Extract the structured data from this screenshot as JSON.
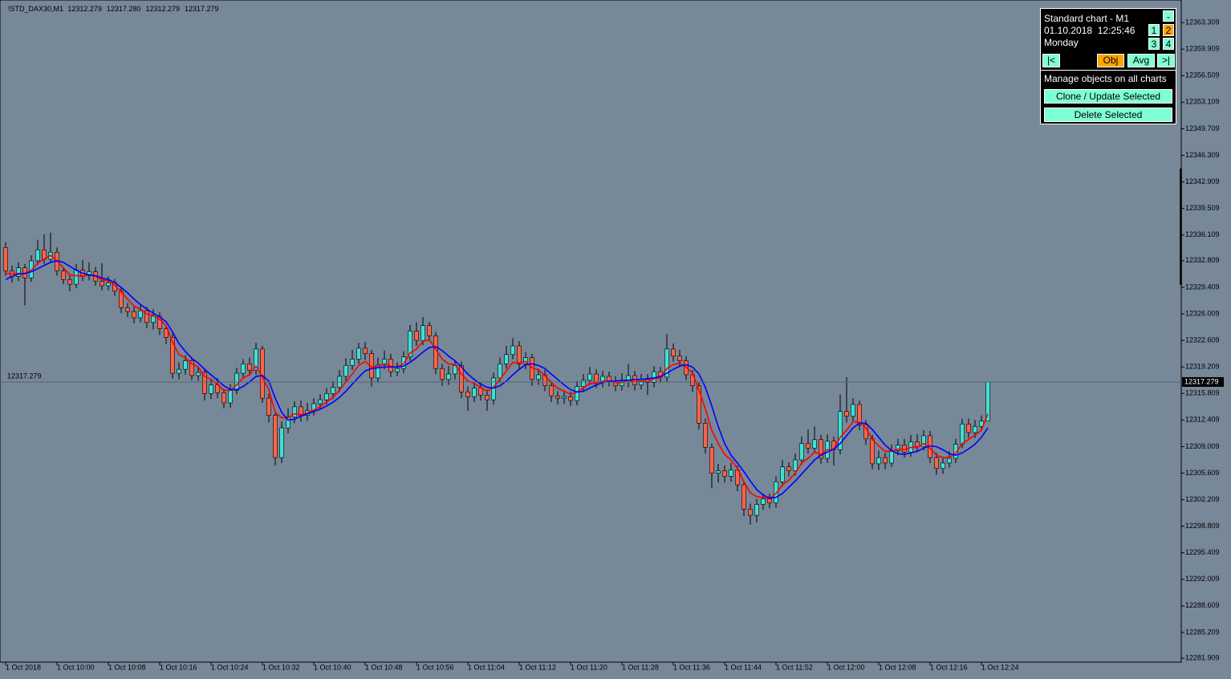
{
  "chart_data": {
    "type": "candlestick",
    "symbol": "!STD_DAX30,M1",
    "header_ohlc": [
      "12312.279",
      "12317.280",
      "12312.279",
      "12317.279"
    ],
    "categories": [
      "1 Oct 2018",
      null,
      null,
      null,
      null,
      null,
      null,
      null,
      "1 Oct 10:00",
      null,
      null,
      null,
      null,
      null,
      null,
      null,
      "1 Oct 10:08",
      null,
      null,
      null,
      null,
      null,
      null,
      null,
      "1 Oct 10:16",
      null,
      null,
      null,
      null,
      null,
      null,
      null,
      "1 Oct 10:24",
      null,
      null,
      null,
      null,
      null,
      null,
      null,
      "1 Oct 10:32",
      null,
      null,
      null,
      null,
      null,
      null,
      null,
      "1 Oct 10:40",
      null,
      null,
      null,
      null,
      null,
      null,
      null,
      "1 Oct 10:48",
      null,
      null,
      null,
      null,
      null,
      null,
      null,
      "1 Oct 10:56",
      null,
      null,
      null,
      null,
      null,
      null,
      null,
      "1 Oct 11:04",
      null,
      null,
      null,
      null,
      null,
      null,
      null,
      "1 Oct 11:12",
      null,
      null,
      null,
      null,
      null,
      null,
      null,
      "1 Oct 11:20",
      null,
      null,
      null,
      null,
      null,
      null,
      null,
      "1 Oct 11:28",
      null,
      null,
      null,
      null,
      null,
      null,
      null,
      "1 Oct 11:36",
      null,
      null,
      null,
      null,
      null,
      null,
      null,
      "1 Oct 11:44",
      null,
      null,
      null,
      null,
      null,
      null,
      null,
      "1 Oct 11:52",
      null,
      null,
      null,
      null,
      null,
      null,
      null,
      "1 Oct 12:00",
      null,
      null,
      null,
      null,
      null,
      null,
      null,
      "1 Oct 12:08",
      null,
      null,
      null,
      null,
      null,
      null,
      null,
      "1 Oct 12:16",
      null,
      null,
      null,
      null,
      null,
      null,
      null,
      "1 Oct 12:24",
      null
    ],
    "open": [
      12334.5,
      12331.5,
      12330.8,
      12331.9,
      12330.6,
      12332.8,
      12334.2,
      12333.0,
      12333.9,
      12331.5,
      12330.4,
      12329.8,
      12331.6,
      12330.9,
      12331.4,
      12330.2,
      12329.6,
      12330.0,
      12328.9,
      12326.8,
      12326.3,
      12325.5,
      12326.4,
      12324.9,
      12325.7,
      12324.1,
      12323.0,
      12318.4,
      12318.9,
      12320.0,
      12318.1,
      12318.5,
      12315.8,
      12316.9,
      12315.9,
      12314.6,
      12316.2,
      12318.4,
      12319.6,
      12318.8,
      12321.5,
      12315.2,
      12313.0,
      12307.6,
      12311.4,
      12312.8,
      12314.1,
      12313.0,
      12313.6,
      12314.5,
      12315.0,
      12315.8,
      12316.6,
      12318.0,
      12319.4,
      12320.2,
      12321.6,
      12320.9,
      12317.8,
      12319.5,
      12320.2,
      12318.6,
      12319.0,
      12320.5,
      12323.8,
      12322.6,
      12324.5,
      12323.2,
      12319.0,
      12317.6,
      12318.3,
      12319.4,
      12316.0,
      12315.4,
      12316.5,
      12315.6,
      12315.0,
      12317.8,
      12319.6,
      12320.8,
      12321.9,
      12319.6,
      12320.4,
      12317.6,
      12318.2,
      12316.8,
      12315.5,
      12315.2,
      12315.4,
      12314.9,
      12316.7,
      12317.5,
      12318.3,
      12317.2,
      12318.0,
      12317.4,
      12316.8,
      12317.3,
      12318.1,
      12316.9,
      12317.6,
      12317.2,
      12318.6,
      12317.9,
      12321.5,
      12320.6,
      12320.0,
      12318.2,
      12316.8,
      12312.0,
      12308.9,
      12305.6,
      12305.9,
      12305.2,
      12306.0,
      12304.1,
      12301.0,
      12300.2,
      12301.6,
      12302.3,
      12301.8,
      12304.5,
      12306.4,
      12305.9,
      12307.3,
      12309.4,
      12308.8,
      12309.9,
      12307.5,
      12309.7,
      12308.6,
      12313.5,
      12312.9,
      12314.4,
      12311.8,
      12310.0,
      12306.8,
      12307.6,
      12306.9,
      12308.5,
      12309.2,
      12308.3,
      12309.6,
      12309.0,
      12310.4,
      12307.6,
      12306.2,
      12306.9,
      12307.5,
      12309.3,
      12311.9,
      12310.8,
      12311.6,
      12312.279
    ],
    "high": [
      12335.2,
      12332.2,
      12332.6,
      12332.4,
      12333.5,
      12335.5,
      12336.2,
      12336.4,
      12334.5,
      12332.0,
      12330.9,
      12332.4,
      12332.9,
      12332.6,
      12332.0,
      12332.5,
      12330.8,
      12330.5,
      12329.4,
      12327.4,
      12326.9,
      12327.1,
      12326.9,
      12326.6,
      12326.2,
      12324.6,
      12323.5,
      12319.8,
      12320.7,
      12320.5,
      12319.3,
      12319.0,
      12317.7,
      12317.8,
      12316.4,
      12317.0,
      12319.1,
      12320.2,
      12320.4,
      12322.3,
      12321.9,
      12315.8,
      12313.6,
      12312.2,
      12313.9,
      12314.8,
      12314.9,
      12314.6,
      12315.2,
      12315.7,
      12316.5,
      12317.4,
      12318.8,
      12320.3,
      12321.4,
      12322.3,
      12322.4,
      12321.4,
      12320.4,
      12321.3,
      12320.9,
      12319.8,
      12321.2,
      12324.6,
      12324.9,
      12325.6,
      12325.0,
      12323.7,
      12319.6,
      12319.3,
      12320.1,
      12319.9,
      12316.7,
      12317.3,
      12317.2,
      12316.3,
      12318.5,
      12320.4,
      12321.9,
      12322.9,
      12322.5,
      12321.1,
      12320.9,
      12319.0,
      12318.8,
      12317.4,
      12316.1,
      12316.0,
      12316.0,
      12317.4,
      12318.3,
      12319.2,
      12318.9,
      12318.7,
      12318.6,
      12318.0,
      12318.4,
      12319.6,
      12318.7,
      12318.3,
      12318.3,
      12319.3,
      12319.2,
      12323.4,
      12322.2,
      12321.4,
      12320.6,
      12318.8,
      12317.3,
      12312.6,
      12309.4,
      12306.8,
      12306.6,
      12306.9,
      12306.6,
      12304.6,
      12301.7,
      12302.3,
      12303.0,
      12303.0,
      12305.2,
      12307.3,
      12307.0,
      12308.1,
      12310.3,
      12311.2,
      12311.6,
      12310.5,
      12310.6,
      12310.3,
      12315.7,
      12317.9,
      12315.2,
      12314.9,
      12312.4,
      12310.5,
      12308.5,
      12308.2,
      12309.3,
      12310.0,
      12310.0,
      12310.5,
      12310.6,
      12311.1,
      12311.0,
      12308.2,
      12307.6,
      12308.4,
      12310.0,
      12312.6,
      12312.6,
      12312.4,
      12313.0,
      12317.28
    ],
    "low": [
      12330.9,
      12330.0,
      12330.2,
      12327.1,
      12330.1,
      12332.3,
      12332.4,
      12332.5,
      12330.9,
      12329.8,
      12328.9,
      12329.3,
      12330.2,
      12330.3,
      12329.6,
      12329.0,
      12329.0,
      12328.3,
      12326.1,
      12325.6,
      12324.8,
      12324.9,
      12324.2,
      12324.0,
      12323.3,
      12322.1,
      12317.7,
      12317.6,
      12318.2,
      12317.5,
      12317.4,
      12314.9,
      12315.1,
      12315.2,
      12313.9,
      12314.0,
      12315.7,
      12317.9,
      12318.1,
      12318.2,
      12314.6,
      12312.1,
      12306.6,
      12306.9,
      12310.7,
      12312.0,
      12312.2,
      12312.3,
      12313.0,
      12313.8,
      12314.4,
      12315.1,
      12316.0,
      12317.4,
      12318.8,
      12319.6,
      12320.1,
      12316.7,
      12317.2,
      12318.9,
      12317.9,
      12318.0,
      12318.4,
      12320.0,
      12321.9,
      12322.0,
      12322.5,
      12318.3,
      12316.8,
      12316.9,
      12317.6,
      12315.2,
      12313.6,
      12314.7,
      12314.9,
      12313.6,
      12314.4,
      12317.2,
      12319.0,
      12320.2,
      12318.9,
      12318.9,
      12316.8,
      12316.9,
      12316.1,
      12314.7,
      12314.4,
      12314.5,
      12314.2,
      12314.3,
      12316.0,
      12316.9,
      12316.5,
      12316.6,
      12316.7,
      12316.1,
      12316.2,
      12316.6,
      12316.2,
      12316.3,
      12315.6,
      12316.6,
      12317.2,
      12317.3,
      12319.9,
      12319.3,
      12317.5,
      12316.0,
      12311.2,
      12308.1,
      12303.7,
      12304.4,
      12304.4,
      12304.5,
      12303.3,
      12300.1,
      12299.0,
      12299.3,
      12300.9,
      12301.1,
      12301.2,
      12303.9,
      12305.2,
      12305.3,
      12306.7,
      12308.1,
      12308.2,
      12306.8,
      12306.9,
      12306.6,
      12308.0,
      12312.1,
      12312.3,
      12311.1,
      12309.2,
      12306.1,
      12306.0,
      12306.1,
      12306.4,
      12307.9,
      12307.6,
      12307.7,
      12308.3,
      12308.5,
      12306.9,
      12305.4,
      12305.5,
      12306.3,
      12306.9,
      12308.8,
      12310.1,
      12310.1,
      12311.0,
      12312.279
    ],
    "close": [
      12331.5,
      12330.8,
      12331.9,
      12330.6,
      12332.8,
      12334.2,
      12333.0,
      12333.9,
      12331.5,
      12330.4,
      12329.8,
      12331.6,
      12330.9,
      12331.4,
      12330.2,
      12329.6,
      12330.0,
      12328.9,
      12326.8,
      12326.3,
      12325.5,
      12326.4,
      12324.9,
      12325.7,
      12324.1,
      12323.0,
      12318.4,
      12318.9,
      12320.0,
      12318.1,
      12318.5,
      12315.8,
      12316.9,
      12315.9,
      12314.6,
      12316.2,
      12318.4,
      12319.6,
      12318.8,
      12321.5,
      12315.2,
      12313.0,
      12307.6,
      12311.4,
      12312.8,
      12314.1,
      12313.0,
      12313.6,
      12314.5,
      12315.0,
      12315.8,
      12316.6,
      12318.0,
      12319.4,
      12320.2,
      12321.6,
      12320.9,
      12317.8,
      12319.5,
      12320.2,
      12318.6,
      12319.0,
      12320.5,
      12323.8,
      12322.6,
      12324.5,
      12323.2,
      12319.0,
      12317.6,
      12318.3,
      12319.4,
      12316.0,
      12315.4,
      12316.5,
      12315.6,
      12315.0,
      12317.8,
      12319.6,
      12320.8,
      12321.9,
      12319.6,
      12320.4,
      12317.6,
      12318.2,
      12316.8,
      12315.5,
      12315.2,
      12315.4,
      12314.9,
      12316.7,
      12317.5,
      12318.3,
      12317.2,
      12318.0,
      12317.4,
      12316.8,
      12317.3,
      12318.1,
      12316.9,
      12317.6,
      12317.2,
      12318.6,
      12317.9,
      12321.5,
      12320.6,
      12320.0,
      12318.2,
      12316.8,
      12312.0,
      12308.9,
      12305.6,
      12305.9,
      12305.2,
      12306.0,
      12304.1,
      12301.0,
      12300.2,
      12301.6,
      12302.3,
      12301.8,
      12304.5,
      12306.4,
      12305.9,
      12307.3,
      12309.4,
      12308.8,
      12309.9,
      12307.5,
      12309.7,
      12308.6,
      12313.5,
      12312.9,
      12314.4,
      12311.8,
      12310.0,
      12306.8,
      12307.6,
      12306.9,
      12308.5,
      12309.2,
      12308.3,
      12309.6,
      12309.0,
      12310.4,
      12307.6,
      12306.2,
      12306.9,
      12307.5,
      12309.3,
      12311.9,
      12310.8,
      12311.6,
      12312.279,
      12317.279
    ],
    "up_color": "#40e0d0",
    "down_color": "#ff6347",
    "wick_color": "#000000",
    "series": [
      {
        "color": "#ff0000",
        "values": [
          12331.2,
          12331.1,
          12331.2,
          12331.1,
          12331.6,
          12332.5,
          12333.0,
          12333.5,
          12332.8,
          12331.9,
          12331.0,
          12330.9,
          12330.8,
          12331.0,
          12330.8,
          12330.4,
          12330.2,
          12329.7,
          12328.8,
          12327.9,
          12327.0,
          12326.6,
          12326.0,
          12325.8,
          12325.3,
          12324.5,
          12322.4,
          12320.8,
          12320.4,
          12319.6,
          12319.2,
          12318.0,
          12317.6,
          12317.0,
          12316.2,
          12316.2,
          12316.9,
          12317.8,
          12318.2,
          12319.3,
          12317.9,
          12316.3,
          12313.4,
          12312.7,
          12312.7,
          12313.2,
          12313.1,
          12313.3,
          12313.7,
          12314.1,
          12314.7,
          12315.3,
          12316.2,
          12317.3,
          12318.3,
          12319.4,
          12319.9,
          12319.2,
          12319.3,
          12319.6,
          12319.3,
          12319.2,
          12319.6,
          12321.0,
          12321.5,
          12322.5,
          12322.7,
          12321.5,
          12320.2,
          12319.6,
          12319.5,
          12318.3,
          12317.4,
          12317.1,
          12316.6,
          12316.1,
          12316.6,
          12317.6,
          12318.7,
          12319.8,
          12319.7,
          12319.9,
          12319.1,
          12318.8,
          12318.1,
          12317.2,
          12316.5,
          12316.1,
          12315.7,
          12316.0,
          12316.5,
          12317.1,
          12317.1,
          12317.4,
          12317.4,
          12317.2,
          12317.2,
          12317.5,
          12317.3,
          12317.4,
          12317.3,
          12317.7,
          12317.8,
          12319.0,
          12319.5,
          12319.7,
          12319.2,
          12318.4,
          12316.3,
          12313.8,
          12311.1,
          12309.4,
          12308.0,
          12307.3,
          12306.2,
          12304.5,
          12303.1,
          12302.6,
          12302.5,
          12302.3,
          12303.0,
          12304.1,
          12304.7,
          12305.6,
          12306.9,
          12307.5,
          12308.3,
          12308.0,
          12308.6,
          12308.6,
          12310.2,
          12311.1,
          12312.2,
          12312.1,
          12311.4,
          12309.9,
          12309.1,
          12308.4,
          12308.4,
          12308.7,
          12308.6,
          12308.9,
          12308.9,
          12309.4,
          12308.8,
          12307.9,
          12307.6,
          12307.6,
          12308.2,
          12309.4,
          12309.9,
          12310.5,
          12311.1,
          12313.2
        ]
      },
      {
        "color": "#0000ff",
        "values": [
          12330.4,
          12330.8,
          12331.1,
          12331.2,
          12331.4,
          12331.8,
          12332.2,
          12332.6,
          12332.8,
          12332.6,
          12332.1,
          12331.6,
          12331.2,
          12331.0,
          12330.9,
          12330.6,
          12330.4,
          12330.0,
          12329.4,
          12328.7,
          12327.9,
          12327.2,
          12326.6,
          12326.1,
          12325.6,
          12325.0,
          12323.7,
          12322.2,
          12321.2,
          12320.3,
          12319.7,
          12318.9,
          12318.2,
          12317.5,
          12316.8,
          12316.3,
          12316.3,
          12316.7,
          12317.3,
          12318.0,
          12318.1,
          12317.4,
          12315.2,
          12313.4,
          12312.4,
          12312.5,
          12312.9,
          12313.2,
          12313.5,
          12313.8,
          12314.2,
          12314.7,
          12315.3,
          12316.1,
          12317.0,
          12317.9,
          12318.7,
          12319.0,
          12319.1,
          12319.2,
          12319.2,
          12319.2,
          12319.3,
          12319.8,
          12320.4,
          12321.1,
          12321.7,
          12321.8,
          12321.3,
          12320.6,
          12320.0,
          12319.2,
          12318.3,
          12317.6,
          12317.0,
          12316.6,
          12316.5,
          12316.8,
          12317.4,
          12318.2,
          12318.9,
          12319.5,
          12319.6,
          12319.4,
          12319.0,
          12318.3,
          12317.6,
          12316.9,
          12316.3,
          12316.0,
          12316.1,
          12316.5,
          12316.9,
          12317.2,
          12317.4,
          12317.4,
          12317.5,
          12317.5,
          12317.6,
          12317.6,
          12317.7,
          12317.8,
          12318.0,
          12318.4,
          12318.9,
          12319.3,
          12319.5,
          12319.2,
          12318.3,
          12316.6,
          12314.2,
          12311.6,
          12309.4,
          12307.9,
          12306.9,
          12305.8,
          12304.6,
          12303.5,
          12302.8,
          12302.4,
          12302.5,
          12303.0,
          12303.8,
          12304.6,
          12305.5,
          12306.4,
          12307.3,
          12307.9,
          12308.3,
          12308.7,
          12309.4,
          12310.4,
          12311.4,
          12312.0,
          12312.0,
          12311.2,
          12310.2,
          12309.2,
          12308.5,
          12308.1,
          12308.0,
          12308.2,
          12308.4,
          12308.8,
          12309.1,
          12309.0,
          12308.6,
          12308.1,
          12307.9,
          12308.2,
          12308.7,
          12309.3,
          12310.2,
          12311.4
        ]
      }
    ],
    "ylim": [
      12281.4,
      12366.2
    ],
    "yticks": [
      12363.309,
      12359.909,
      12356.509,
      12353.109,
      12349.709,
      12346.309,
      12342.909,
      12339.509,
      12336.109,
      12332.809,
      12329.409,
      12326.009,
      12322.609,
      12319.209,
      12315.809,
      12312.409,
      12309.009,
      12305.609,
      12302.209,
      12298.809,
      12295.409,
      12292.009,
      12288.609,
      12285.209,
      12281.909
    ],
    "bid": 12317.279
  },
  "panel": {
    "title": "Standard chart - M1",
    "datetime": "01.10.2018  12:25:46",
    "weekday": "Monday",
    "minimize": "-",
    "pages": [
      "1",
      "2",
      "3",
      "4"
    ],
    "nav": [
      "|<",
      "Obj",
      "Avg",
      ">|"
    ],
    "manage_label": "Manage objects on all charts",
    "clone_button": "Clone / Update Selected",
    "delete_button": "Delete Selected"
  }
}
